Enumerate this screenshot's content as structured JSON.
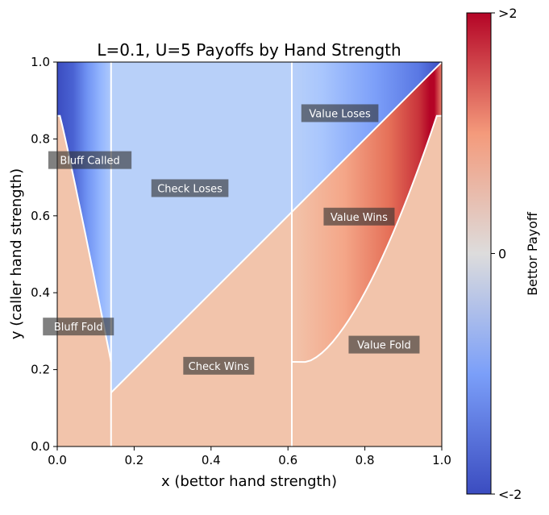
{
  "chart_data": {
    "type": "heatmap",
    "title": "L=0.1, U=5 Payoffs by Hand Strength",
    "xlabel": "x (bettor hand strength)",
    "ylabel": "y (caller hand strength)",
    "xlim": [
      0,
      1
    ],
    "ylim": [
      0,
      1
    ],
    "xticks": [
      "0.0",
      "0.2",
      "0.4",
      "0.6",
      "0.8",
      "1.0"
    ],
    "yticks": [
      "0.0",
      "0.2",
      "0.4",
      "0.6",
      "0.8",
      "1.0"
    ],
    "colormap": "coolwarm",
    "colorbar": {
      "label": "Bettor Payoff",
      "ticks": [
        ">2",
        "0",
        "<-2"
      ],
      "range": [
        -2,
        2
      ]
    },
    "thresholds": {
      "bluff_cutoff_x": 0.14,
      "value_cutoff_x": 0.61,
      "caller_curve_endpoint_y": 0.86,
      "bluff_curve_bottom_y": 0.22,
      "value_curve_bottom_y": 0.22,
      "check_line_start_y": 0.14
    },
    "colors": {
      "check_wins": "#f2c4ab",
      "check_loses": "#b8d0f9",
      "boundary": "#ffffff"
    },
    "regions": [
      {
        "label": "Bluff Called",
        "x": 0.085,
        "y": 0.745
      },
      {
        "label": "Check Loses",
        "x": 0.345,
        "y": 0.672
      },
      {
        "label": "Value Loses",
        "x": 0.735,
        "y": 0.867
      },
      {
        "label": "Value Wins",
        "x": 0.785,
        "y": 0.598
      },
      {
        "label": "Bluff Fold",
        "x": 0.055,
        "y": 0.312
      },
      {
        "label": "Check Wins",
        "x": 0.42,
        "y": 0.21
      },
      {
        "label": "Value Fold",
        "x": 0.85,
        "y": 0.265
      }
    ]
  }
}
